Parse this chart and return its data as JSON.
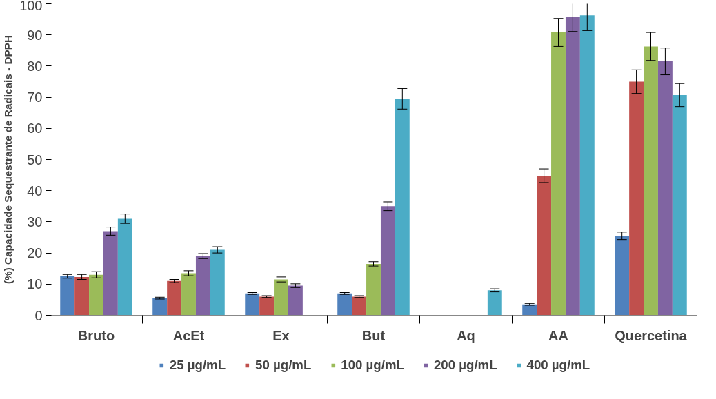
{
  "chart_data": {
    "type": "bar",
    "ylabel": "(%) Capacidade Sequestrante de Radicais - DPPH",
    "categories": [
      "Bruto",
      "AcEt",
      "Ex",
      "But",
      "Aq",
      "AA",
      "Quercetina"
    ],
    "series": [
      {
        "name": "25 µg/mL",
        "color": "#4f81bd",
        "values": [
          12.5,
          5.5,
          7,
          7,
          null,
          3.5,
          25.5
        ],
        "errors": [
          0.6,
          0.3,
          0.3,
          0.3,
          null,
          0.3,
          1.2
        ]
      },
      {
        "name": "50 µg/mL",
        "color": "#c0504d",
        "values": [
          12.3,
          11,
          6,
          6,
          null,
          44.8,
          75
        ],
        "errors": [
          0.8,
          0.5,
          0.3,
          0.3,
          null,
          2.2,
          3.8
        ]
      },
      {
        "name": "100 µg/mL",
        "color": "#9bbb59",
        "values": [
          13,
          13.5,
          11.5,
          16.5,
          null,
          90.8,
          86.3
        ],
        "errors": [
          1,
          0.8,
          0.8,
          0.7,
          null,
          4.5,
          4.5
        ]
      },
      {
        "name": "200 µg/mL",
        "color": "#8064a2",
        "values": [
          27,
          19,
          9.5,
          35,
          null,
          95.8,
          81.5
        ],
        "errors": [
          1.3,
          0.8,
          0.6,
          1.4,
          null,
          4.7,
          4.3
        ]
      },
      {
        "name": "400 µg/mL",
        "color": "#4bacc6",
        "values": [
          31,
          21,
          null,
          69.5,
          8,
          96.3,
          70.7
        ],
        "errors": [
          1.5,
          1,
          null,
          3.3,
          0.5,
          4.9,
          3.7
        ]
      }
    ],
    "ylim": [
      0,
      100
    ],
    "yticks": [
      0,
      10,
      20,
      30,
      40,
      50,
      60,
      70,
      80,
      90,
      100
    ],
    "grid": false,
    "legend": "bottom"
  }
}
